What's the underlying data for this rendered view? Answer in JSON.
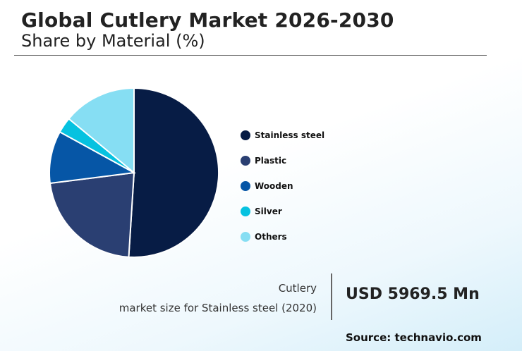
{
  "header": {
    "title": "Global Cutlery Market 2026-2030",
    "subtitle": "Share by Material (%)"
  },
  "chart_data": {
    "type": "pie",
    "categories": [
      "Stainless steel",
      "Plastic",
      "Wooden",
      "Silver",
      "Others"
    ],
    "values": [
      51,
      22,
      10,
      3,
      14
    ],
    "colors": [
      "#071c45",
      "#2a3f72",
      "#0656a6",
      "#06c2e0",
      "#86def3"
    ],
    "legend_position": "right"
  },
  "stat": {
    "line1": "Cutlery",
    "line2": "market size for Stainless steel (2020)",
    "value": "USD 5969.5 Mn"
  },
  "footer": {
    "source": "Source: technavio.com"
  }
}
